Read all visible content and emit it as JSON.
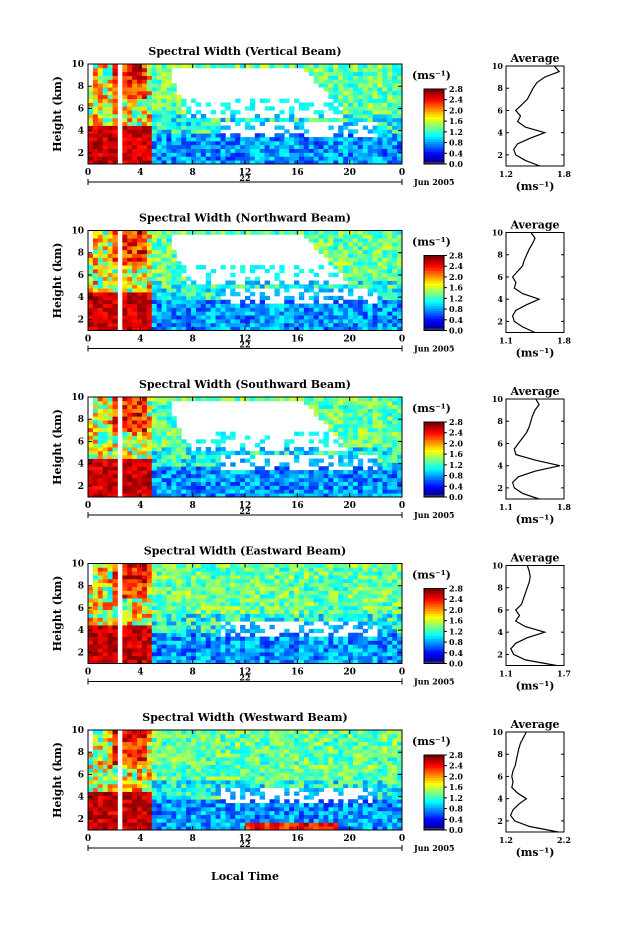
{
  "figure": {
    "xlabel": "Local Time",
    "date_label": "Jun 2005",
    "day_label": "22"
  },
  "chart_data": [
    {
      "type": "heatmap",
      "title": "Spectral Width (Vertical Beam)",
      "ylabel": "Height (km)",
      "xticks": [
        "0",
        "4",
        "8",
        "12",
        "16",
        "20",
        "0"
      ],
      "yticks": [
        "2",
        "4",
        "6",
        "8",
        "10"
      ],
      "xlim": [
        0,
        24
      ],
      "ylim": [
        1,
        10
      ],
      "colorbar": {
        "unit": "(ms⁻¹)",
        "ticks": [
          "0.0",
          "0.4",
          "0.8",
          "1.2",
          "1.6",
          "2.0",
          "2.4",
          "2.8"
        ],
        "range": [
          0,
          2.8
        ]
      },
      "profile": {
        "title": "Average",
        "xlabel": "(ms⁻¹)",
        "xticks": [
          "1.2",
          "1.8"
        ],
        "xlim": [
          1.2,
          1.8
        ],
        "yticks": [
          "2",
          "4",
          "6",
          "8",
          "10"
        ],
        "heights": [
          1.0,
          1.5,
          2.0,
          2.5,
          3.0,
          3.5,
          4.0,
          4.5,
          5.0,
          5.5,
          6.0,
          6.5,
          7.0,
          7.5,
          8.0,
          8.5,
          9.0,
          9.5,
          10.0
        ],
        "values": [
          1.55,
          1.4,
          1.3,
          1.28,
          1.32,
          1.45,
          1.6,
          1.4,
          1.32,
          1.35,
          1.3,
          1.36,
          1.42,
          1.45,
          1.48,
          1.52,
          1.6,
          1.75,
          1.7
        ]
      }
    },
    {
      "type": "heatmap",
      "title": "Spectral Width (Northward Beam)",
      "ylabel": "Height (km)",
      "xticks": [
        "0",
        "4",
        "8",
        "12",
        "16",
        "20",
        "0"
      ],
      "yticks": [
        "2",
        "4",
        "6",
        "8",
        "10"
      ],
      "xlim": [
        0,
        24
      ],
      "ylim": [
        1,
        10
      ],
      "colorbar": {
        "unit": "(ms⁻¹)",
        "ticks": [
          "0.0",
          "0.4",
          "0.8",
          "1.2",
          "1.6",
          "2.0",
          "2.4",
          "2.8"
        ],
        "range": [
          0,
          2.8
        ]
      },
      "profile": {
        "title": "Average",
        "xlabel": "(ms⁻¹)",
        "xticks": [
          "1.1",
          "1.8"
        ],
        "xlim": [
          1.1,
          1.8
        ],
        "yticks": [
          "2",
          "4",
          "6",
          "8",
          "10"
        ],
        "heights": [
          1.0,
          1.5,
          2.0,
          2.5,
          3.0,
          3.5,
          4.0,
          4.5,
          5.0,
          5.5,
          6.0,
          6.5,
          7.0,
          7.5,
          8.0,
          8.5,
          9.0,
          9.5,
          10.0
        ],
        "values": [
          1.45,
          1.3,
          1.2,
          1.18,
          1.22,
          1.35,
          1.5,
          1.3,
          1.2,
          1.22,
          1.18,
          1.24,
          1.3,
          1.32,
          1.35,
          1.38,
          1.42,
          1.45,
          1.4
        ]
      }
    },
    {
      "type": "heatmap",
      "title": "Spectral Width (Southward Beam)",
      "ylabel": "Height (km)",
      "xticks": [
        "0",
        "4",
        "8",
        "12",
        "16",
        "20",
        "0"
      ],
      "yticks": [
        "2",
        "4",
        "6",
        "8",
        "10"
      ],
      "xlim": [
        0,
        24
      ],
      "ylim": [
        1,
        10
      ],
      "colorbar": {
        "unit": "(ms⁻¹)",
        "ticks": [
          "0.0",
          "0.4",
          "0.8",
          "1.2",
          "1.6",
          "2.0",
          "2.4",
          "2.8"
        ],
        "range": [
          0,
          2.8
        ]
      },
      "profile": {
        "title": "Average",
        "xlabel": "(ms⁻¹)",
        "xticks": [
          "1.1",
          "1.8"
        ],
        "xlim": [
          1.1,
          1.8
        ],
        "yticks": [
          "2",
          "4",
          "6",
          "8",
          "10"
        ],
        "heights": [
          1.0,
          1.5,
          2.0,
          2.5,
          3.0,
          3.5,
          4.0,
          4.5,
          5.0,
          5.5,
          6.0,
          6.5,
          7.0,
          7.5,
          8.0,
          8.5,
          9.0,
          9.5,
          10.0
        ],
        "values": [
          1.5,
          1.3,
          1.2,
          1.18,
          1.25,
          1.45,
          1.75,
          1.45,
          1.22,
          1.2,
          1.25,
          1.3,
          1.35,
          1.38,
          1.4,
          1.42,
          1.45,
          1.5,
          1.46
        ]
      }
    },
    {
      "type": "heatmap",
      "title": "Spectral Width (Eastward Beam)",
      "ylabel": "Height (km)",
      "xticks": [
        "0",
        "4",
        "8",
        "12",
        "16",
        "20",
        "0"
      ],
      "yticks": [
        "2",
        "4",
        "6",
        "8",
        "10"
      ],
      "xlim": [
        0,
        24
      ],
      "ylim": [
        1,
        10
      ],
      "colorbar": {
        "unit": "(ms⁻¹)",
        "ticks": [
          "0.0",
          "0.4",
          "0.8",
          "1.2",
          "1.6",
          "2.0",
          "2.4",
          "2.8"
        ],
        "range": [
          0,
          2.8
        ]
      },
      "profile": {
        "title": "Average",
        "xlabel": "(ms⁻¹)",
        "xticks": [
          "1.1",
          "1.7"
        ],
        "xlim": [
          1.1,
          1.7
        ],
        "yticks": [
          "2",
          "4",
          "6",
          "8",
          "10"
        ],
        "heights": [
          1.0,
          1.5,
          2.0,
          2.5,
          3.0,
          3.5,
          4.0,
          4.5,
          5.0,
          5.5,
          6.0,
          6.5,
          7.0,
          7.5,
          8.0,
          8.5,
          9.0,
          9.5,
          10.0
        ],
        "values": [
          1.62,
          1.3,
          1.18,
          1.15,
          1.2,
          1.32,
          1.5,
          1.3,
          1.2,
          1.24,
          1.2,
          1.26,
          1.28,
          1.3,
          1.32,
          1.34,
          1.35,
          1.34,
          1.32
        ]
      }
    },
    {
      "type": "heatmap",
      "title": "Spectral Width (Westward Beam)",
      "ylabel": "Height (km)",
      "xticks": [
        "0",
        "4",
        "8",
        "12",
        "16",
        "20",
        "0"
      ],
      "yticks": [
        "2",
        "4",
        "6",
        "8",
        "10"
      ],
      "xlim": [
        0,
        24
      ],
      "ylim": [
        1,
        10
      ],
      "colorbar": {
        "unit": "(ms⁻¹)",
        "ticks": [
          "0.0",
          "0.4",
          "0.8",
          "1.2",
          "1.6",
          "2.0",
          "2.4",
          "2.8"
        ],
        "range": [
          0,
          2.8
        ]
      },
      "profile": {
        "title": "Average",
        "xlabel": "(ms⁻¹)",
        "xticks": [
          "1.2",
          "2.2"
        ],
        "xlim": [
          1.2,
          2.2
        ],
        "yticks": [
          "2",
          "4",
          "6",
          "8",
          "10"
        ],
        "heights": [
          1.0,
          1.5,
          2.0,
          2.5,
          3.0,
          3.5,
          4.0,
          4.5,
          5.0,
          5.5,
          6.0,
          6.5,
          7.0,
          7.5,
          8.0,
          8.5,
          9.0,
          9.5,
          10.0
        ],
        "values": [
          2.1,
          1.6,
          1.35,
          1.28,
          1.32,
          1.42,
          1.55,
          1.4,
          1.3,
          1.32,
          1.3,
          1.32,
          1.36,
          1.38,
          1.4,
          1.42,
          1.45,
          1.5,
          1.55
        ]
      }
    }
  ]
}
